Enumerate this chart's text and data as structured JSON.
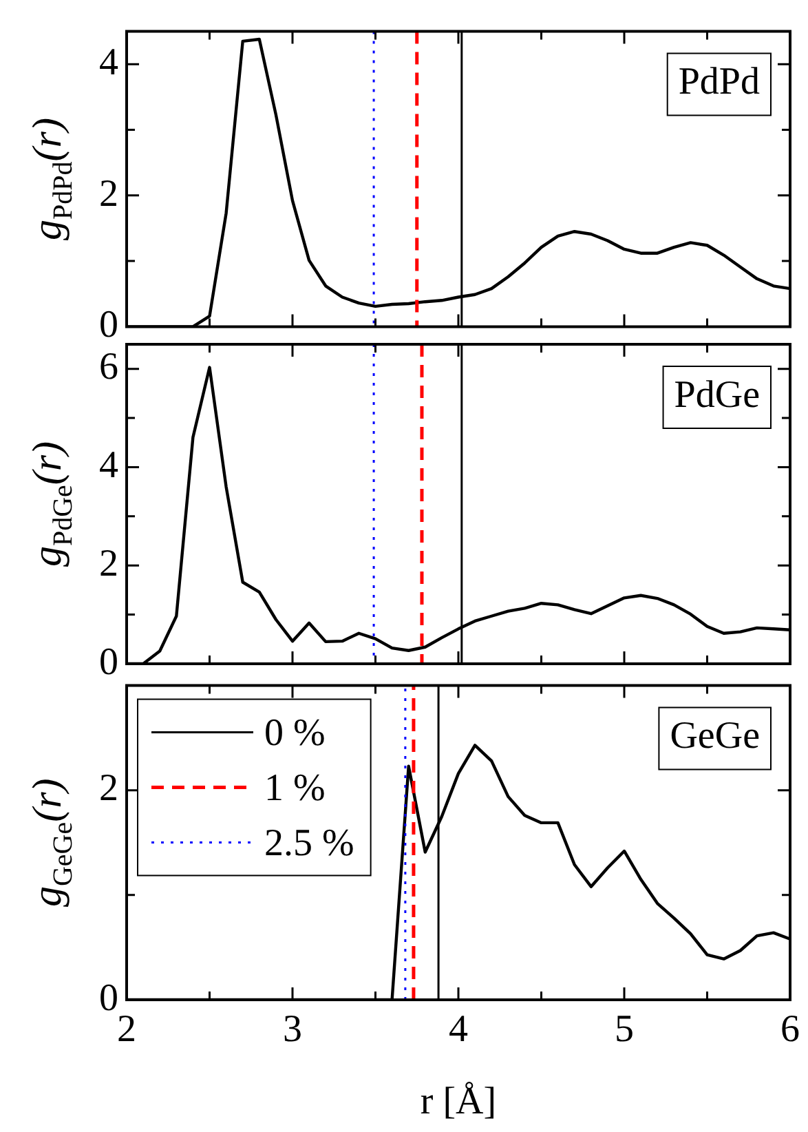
{
  "chart_data": [
    {
      "type": "line",
      "ylabel": "g$_{PdPd}$(r)",
      "xlim": [
        2,
        6
      ],
      "xticks": [
        2,
        {
          "value": 2.5,
          "label": null
        },
        3,
        {
          "value": 3.5,
          "label": null
        },
        4,
        {
          "value": 4.5,
          "label": null
        },
        5,
        {
          "value": 5.5,
          "label": null
        },
        6
      ],
      "ylim": [
        0,
        4.5
      ],
      "yticks": [
        0,
        {
          "value": 1,
          "label": null
        },
        2,
        {
          "value": 3,
          "label": null
        },
        4
      ],
      "tick_labels": "y",
      "marker": "none",
      "line_style": "solid",
      "annotations": [
        "PdPd"
      ],
      "series": [
        {
          "color": "#000000",
          "x": [
            2.0,
            2.4,
            2.5,
            2.6,
            2.7,
            2.8,
            2.9,
            3.0,
            3.1,
            3.2,
            3.3,
            3.4,
            3.5,
            3.6,
            3.7,
            3.8,
            3.9,
            4.0,
            4.1,
            4.2,
            4.3,
            4.4,
            4.5,
            4.6,
            4.7,
            4.8,
            4.9,
            5.0,
            5.1,
            5.2,
            5.3,
            5.4,
            5.5,
            5.6,
            5.7,
            5.8,
            5.9,
            6.0
          ],
          "values": [
            0,
            0,
            0.16,
            1.73,
            4.35,
            4.38,
            3.23,
            1.92,
            1.01,
            0.62,
            0.45,
            0.36,
            0.31,
            0.34,
            0.35,
            0.38,
            0.4,
            0.45,
            0.49,
            0.58,
            0.76,
            0.97,
            1.21,
            1.38,
            1.45,
            1.41,
            1.31,
            1.18,
            1.12,
            1.12,
            1.21,
            1.28,
            1.24,
            1.09,
            0.91,
            0.73,
            0.62,
            0.58
          ]
        }
      ],
      "ref_lines": [
        {
          "axis": "x",
          "value": 4.02,
          "color": "#000000",
          "line_style": "solid"
        },
        {
          "axis": "x",
          "value": 3.75,
          "color": "#ff0000",
          "line_style": "dashed"
        },
        {
          "axis": "x",
          "value": 3.49,
          "color": "#0000ff",
          "line_style": "dotted"
        }
      ]
    },
    {
      "type": "line",
      "ylabel": "g$_{PdGe}$(r)",
      "xlim": [
        2,
        6
      ],
      "xticks": [
        2,
        {
          "value": 2.5,
          "label": null
        },
        3,
        {
          "value": 3.5,
          "label": null
        },
        4,
        {
          "value": 4.5,
          "label": null
        },
        5,
        {
          "value": 5.5,
          "label": null
        },
        6
      ],
      "ylim": [
        0,
        6.5
      ],
      "yticks": [
        0,
        {
          "value": 1,
          "label": null
        },
        2,
        {
          "value": 3,
          "label": null
        },
        4,
        {
          "value": 5,
          "label": null
        },
        6
      ],
      "tick_labels": "y",
      "marker": "none",
      "line_style": "solid",
      "annotations": [
        "PdGe"
      ],
      "series": [
        {
          "color": "#000000",
          "x": [
            2.0,
            2.1,
            2.2,
            2.3,
            2.4,
            2.5,
            2.6,
            2.7,
            2.8,
            2.9,
            3.0,
            3.1,
            3.2,
            3.3,
            3.4,
            3.5,
            3.6,
            3.7,
            3.8,
            3.9,
            4.0,
            4.1,
            4.2,
            4.3,
            4.4,
            4.5,
            4.6,
            4.7,
            4.8,
            4.9,
            5.0,
            5.1,
            5.2,
            5.3,
            5.4,
            5.5,
            5.6,
            5.7,
            5.8,
            5.9,
            6.0
          ],
          "values": [
            0,
            0,
            0.26,
            0.97,
            4.61,
            6.03,
            3.6,
            1.66,
            1.46,
            0.9,
            0.46,
            0.83,
            0.45,
            0.46,
            0.62,
            0.51,
            0.32,
            0.27,
            0.34,
            0.53,
            0.71,
            0.87,
            0.97,
            1.07,
            1.13,
            1.23,
            1.2,
            1.1,
            1.02,
            1.18,
            1.34,
            1.39,
            1.33,
            1.2,
            1.01,
            0.76,
            0.62,
            0.65,
            0.73,
            0.71,
            0.69
          ]
        }
      ],
      "ref_lines": [
        {
          "axis": "x",
          "value": 4.02,
          "color": "#000000",
          "line_style": "solid"
        },
        {
          "axis": "x",
          "value": 3.78,
          "color": "#ff0000",
          "line_style": "dashed"
        },
        {
          "axis": "x",
          "value": 3.49,
          "color": "#0000ff",
          "line_style": "dotted"
        }
      ]
    },
    {
      "type": "line",
      "ylabel": "g$_{GeGe}$(r)",
      "xlabel": "r [Å]",
      "xlim": [
        2,
        6
      ],
      "xticks": [
        2,
        {
          "value": 2.5,
          "label": null
        },
        3,
        {
          "value": 3.5,
          "label": null
        },
        4,
        {
          "value": 4.5,
          "label": null
        },
        5,
        {
          "value": 5.5,
          "label": null
        },
        6
      ],
      "ylim": [
        0,
        3
      ],
      "yticks": [
        0,
        {
          "value": 1,
          "label": null
        },
        2
      ],
      "marker": "none",
      "line_style": "solid",
      "annotations": [
        "GeGe"
      ],
      "legend": "top left",
      "series": [
        {
          "name": "0 %",
          "color": "#000000",
          "line_style": "solid",
          "x": [
            3.88,
            3.88
          ],
          "values": [
            0,
            3
          ]
        },
        {
          "name": "1 %",
          "color": "#ff0000",
          "line_style": "dashed",
          "x": [
            3.73,
            3.73
          ],
          "values": [
            0,
            3
          ]
        },
        {
          "name": "2.5 %",
          "color": "#0000ff",
          "line_style": "dotted",
          "x": [
            3.68,
            3.68
          ],
          "values": [
            0,
            3
          ]
        },
        {
          "color": "#000000",
          "x": [
            2.0,
            3.6,
            3.7,
            3.8,
            3.9,
            4.0,
            4.1,
            4.2,
            4.3,
            4.4,
            4.5,
            4.6,
            4.7,
            4.8,
            4.9,
            5.0,
            5.1,
            5.2,
            5.3,
            5.4,
            5.5,
            5.6,
            5.7,
            5.8,
            5.9,
            6.0
          ],
          "values": [
            0,
            0,
            2.23,
            1.41,
            1.75,
            2.16,
            2.43,
            2.28,
            1.94,
            1.76,
            1.69,
            1.69,
            1.29,
            1.08,
            1.26,
            1.42,
            1.15,
            0.92,
            0.78,
            0.63,
            0.43,
            0.39,
            0.47,
            0.61,
            0.64,
            0.58
          ]
        }
      ]
    }
  ]
}
